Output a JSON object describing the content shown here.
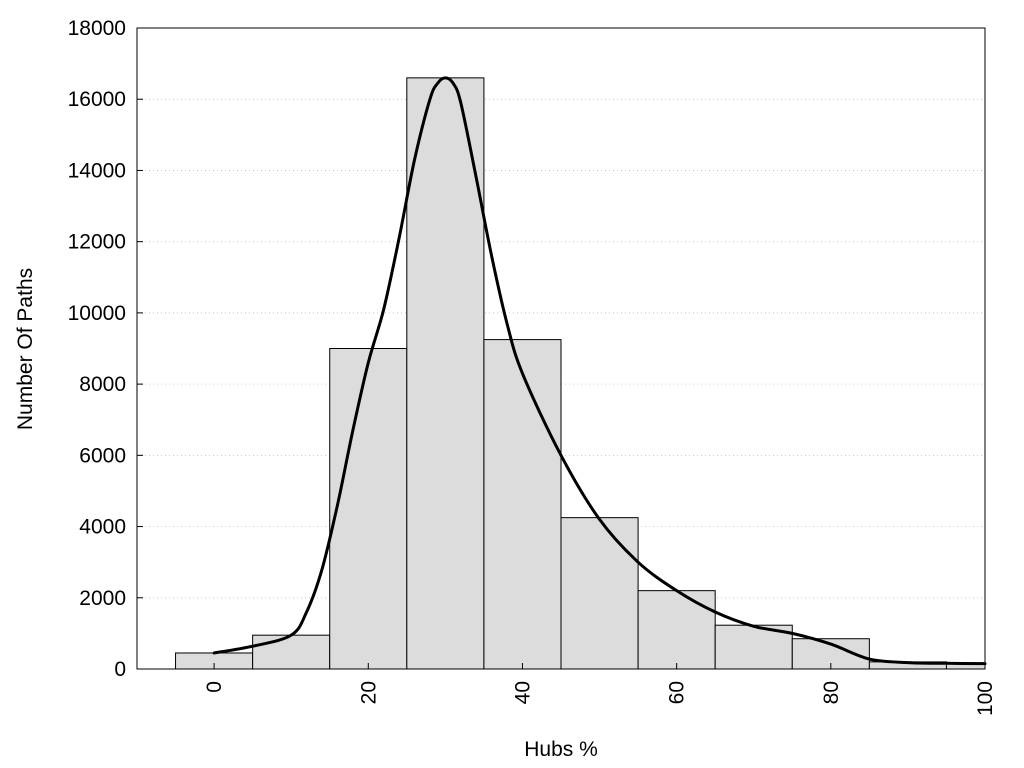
{
  "chart_data": {
    "type": "bar",
    "title": "",
    "xlabel": "Hubs %",
    "ylabel": "Number Of Paths",
    "grid": true,
    "xlim": [
      -10,
      100
    ],
    "ylim": [
      0,
      18000
    ],
    "bin_width": 10,
    "x_ticks": [
      "0",
      "20",
      "40",
      "60",
      "80",
      "100"
    ],
    "y_ticks": [
      "0",
      "2000",
      "4000",
      "6000",
      "8000",
      "10000",
      "12000",
      "14000",
      "16000",
      "18000"
    ],
    "bars": [
      {
        "x": 0,
        "value": 450
      },
      {
        "x": 10,
        "value": 950
      },
      {
        "x": 20,
        "value": 9000
      },
      {
        "x": 30,
        "value": 16600
      },
      {
        "x": 40,
        "value": 9250
      },
      {
        "x": 50,
        "value": 4250
      },
      {
        "x": 60,
        "value": 2200
      },
      {
        "x": 70,
        "value": 1230
      },
      {
        "x": 80,
        "value": 850
      },
      {
        "x": 90,
        "value": 200
      },
      {
        "x": 100,
        "value": 150
      }
    ],
    "series": [
      {
        "type": "line",
        "x": [
          0,
          5,
          10,
          12,
          14,
          16,
          18,
          20,
          22,
          24,
          26,
          28,
          29,
          30,
          31,
          32,
          34,
          36,
          38,
          40,
          45,
          50,
          55,
          60,
          65,
          70,
          75,
          80,
          85,
          90,
          95,
          100
        ],
        "y": [
          450,
          640,
          950,
          1600,
          2800,
          4600,
          6700,
          8600,
          10100,
          12100,
          14300,
          16000,
          16450,
          16600,
          16450,
          15900,
          13800,
          11600,
          9700,
          8300,
          6000,
          4200,
          3000,
          2200,
          1600,
          1200,
          1000,
          700,
          280,
          180,
          160,
          150
        ]
      }
    ]
  }
}
